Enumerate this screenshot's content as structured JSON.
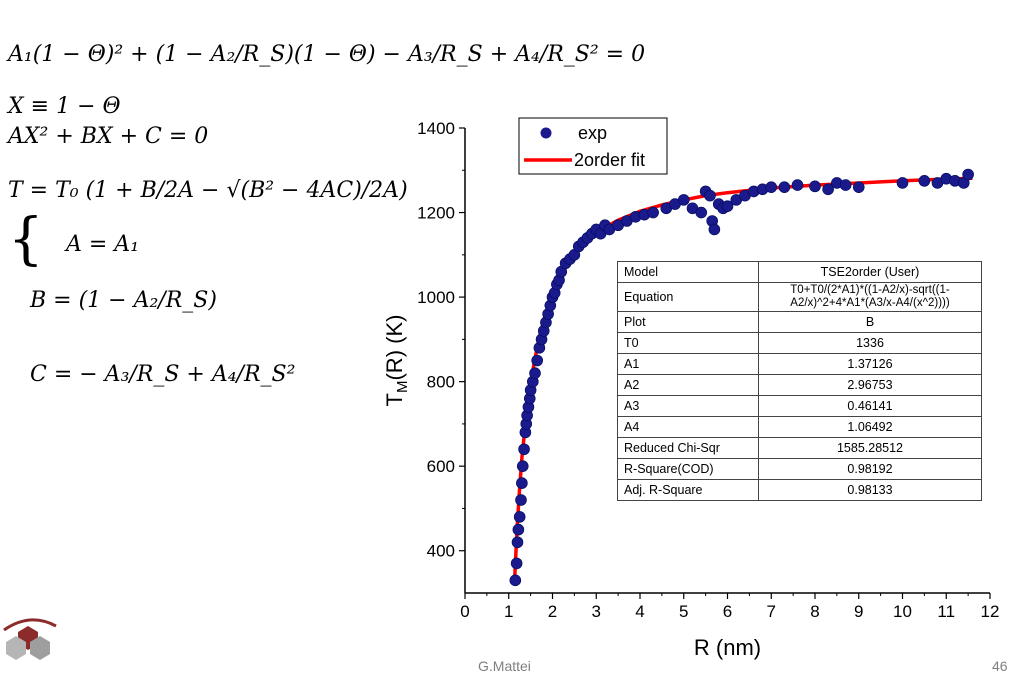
{
  "equations": {
    "line1": "A₁(1 − Θ)² + (1 − A₂/R_S)(1 − Θ) − A₃/R_S + A₄/R_S² = 0",
    "line2": "X ≡ 1 − Θ",
    "line3": "AX² + BX + C = 0",
    "line4": "T = T₀ (1 + B/2A − √(B² − 4AC)/2A)",
    "line5": "A = A₁",
    "line6": "B = (1 − A₂/R_S)",
    "line7": "C = − A₃/R_S + A₄/R_S²"
  },
  "footer": {
    "author": "G.Mattei",
    "page": "46"
  },
  "fit_table": [
    {
      "key": "Model",
      "value": "TSE2order (User)"
    },
    {
      "key": "Equation",
      "value": "T0+T0/(2*A1)*((1-A2/x)-sqrt((1-A2/x)^2+4*A1*(A3/x-A4/(x^2))))"
    },
    {
      "key": "Plot",
      "value": "B"
    },
    {
      "key": "T0",
      "value": "1336"
    },
    {
      "key": "A1",
      "value": "1.37126"
    },
    {
      "key": "A2",
      "value": "2.96753"
    },
    {
      "key": "A3",
      "value": "0.46141"
    },
    {
      "key": "A4",
      "value": "1.06492"
    },
    {
      "key": "Reduced Chi-Sqr",
      "value": "1585.28512"
    },
    {
      "key": "R-Square(COD)",
      "value": "0.98192"
    },
    {
      "key": "Adj. R-Square",
      "value": "0.98133"
    }
  ],
  "chart_data": {
    "type": "scatter",
    "xlabel": "R (nm)",
    "ylabel": "T_M(R) (K)",
    "xlim": [
      0,
      12
    ],
    "ylim": [
      300,
      1400
    ],
    "xticks": [
      0,
      1,
      2,
      3,
      4,
      5,
      6,
      7,
      8,
      9,
      10,
      11,
      12
    ],
    "yticks": [
      400,
      600,
      800,
      1000,
      1200,
      1400
    ],
    "grid": false,
    "legend_position": "top-left",
    "colors": {
      "points": "#1a1a8c",
      "fit": "#ff0000"
    },
    "series": [
      {
        "name": "exp",
        "kind": "points",
        "x": [
          1.15,
          1.18,
          1.2,
          1.22,
          1.25,
          1.28,
          1.3,
          1.32,
          1.35,
          1.38,
          1.4,
          1.42,
          1.45,
          1.48,
          1.5,
          1.55,
          1.6,
          1.65,
          1.7,
          1.75,
          1.8,
          1.85,
          1.9,
          1.95,
          2.0,
          2.05,
          2.1,
          2.15,
          2.2,
          2.3,
          2.4,
          2.5,
          2.6,
          2.7,
          2.8,
          2.9,
          3.0,
          3.1,
          3.2,
          3.3,
          3.5,
          3.7,
          3.9,
          4.1,
          4.3,
          4.6,
          4.8,
          5.0,
          5.2,
          5.4,
          5.5,
          5.6,
          5.65,
          5.7,
          5.8,
          5.9,
          6.0,
          6.2,
          6.4,
          6.6,
          6.8,
          7.0,
          7.3,
          7.6,
          8.0,
          8.3,
          8.5,
          8.7,
          9.0,
          10.0,
          10.5,
          10.8,
          11.0,
          11.2,
          11.4,
          11.5
        ],
        "y": [
          330,
          370,
          420,
          450,
          480,
          520,
          560,
          600,
          640,
          680,
          700,
          720,
          740,
          760,
          780,
          800,
          820,
          850,
          880,
          900,
          920,
          940,
          960,
          980,
          1000,
          1010,
          1030,
          1040,
          1060,
          1080,
          1090,
          1100,
          1120,
          1130,
          1140,
          1150,
          1160,
          1150,
          1170,
          1160,
          1170,
          1180,
          1190,
          1195,
          1200,
          1210,
          1220,
          1230,
          1210,
          1200,
          1250,
          1240,
          1180,
          1160,
          1220,
          1210,
          1215,
          1230,
          1240,
          1250,
          1255,
          1260,
          1260,
          1265,
          1262,
          1255,
          1270,
          1265,
          1260,
          1270,
          1275,
          1270,
          1280,
          1275,
          1270,
          1290
        ]
      },
      {
        "name": "2order fit",
        "kind": "line",
        "x": [
          1.13,
          1.16,
          1.2,
          1.25,
          1.3,
          1.4,
          1.5,
          1.6,
          1.7,
          1.8,
          1.9,
          2.0,
          2.2,
          2.4,
          2.6,
          2.8,
          3.0,
          3.5,
          4.0,
          4.5,
          5.0,
          5.5,
          6.0,
          7.0,
          8.0,
          9.0,
          10.0,
          11.0,
          11.6
        ],
        "y": [
          320,
          390,
          470,
          550,
          620,
          720,
          795,
          855,
          905,
          945,
          980,
          1010,
          1055,
          1090,
          1115,
          1137,
          1153,
          1182,
          1203,
          1218,
          1230,
          1240,
          1247,
          1258,
          1265,
          1270,
          1275,
          1279,
          1281
        ]
      }
    ]
  }
}
